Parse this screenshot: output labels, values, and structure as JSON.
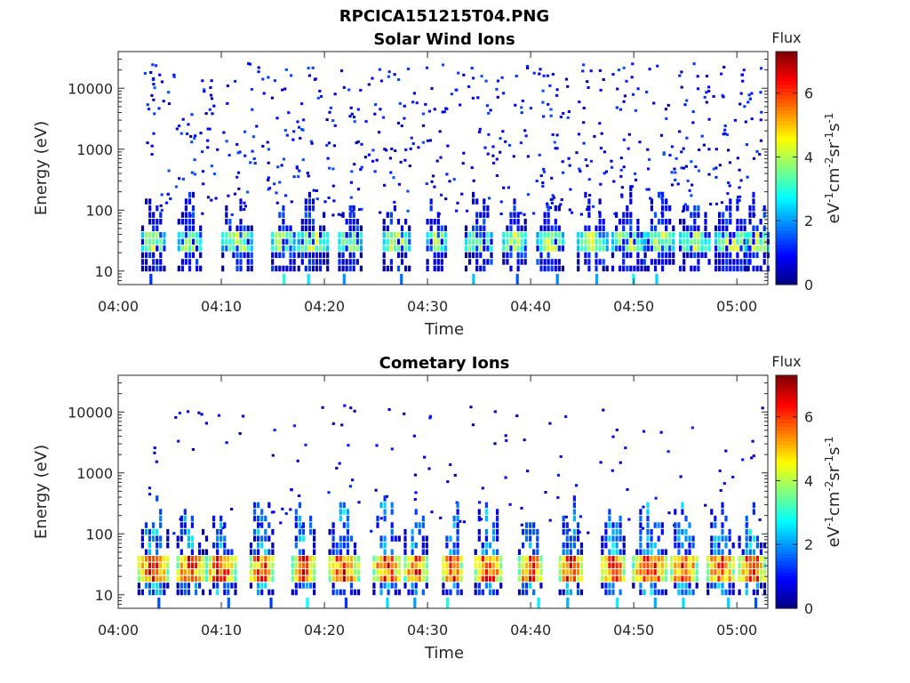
{
  "figure_title": "RPCICA151215T04.PNG",
  "colorbar": {
    "label": "Flux",
    "unit_html": "eV-1cm-2sr-1s-1",
    "ticks": [
      "0",
      "2",
      "4",
      "6"
    ],
    "range": [
      0,
      7.3
    ]
  },
  "chart_data": [
    {
      "type": "heatmap",
      "title": "Solar Wind Ions",
      "xlabel": "Time",
      "ylabel": "Energy (eV)",
      "x_ticks": [
        "04:00",
        "04:10",
        "04:20",
        "04:30",
        "04:40",
        "04:50",
        "05:00"
      ],
      "x_range": [
        "04:00",
        "05:03"
      ],
      "y_scale": "log",
      "y_ticks": [
        "10",
        "100",
        "1000",
        "10000"
      ],
      "y_range": [
        6,
        40000
      ],
      "burst_times_min": [
        3.5,
        7,
        11.5,
        16,
        19,
        22.5,
        27,
        31,
        35,
        38.5,
        42,
        46,
        49.5,
        52.5,
        56,
        59.5,
        62
      ],
      "burst_peak_flux": 4.5,
      "burst_energy_ev": [
        20,
        45
      ],
      "background": "sparse low-flux pixels (flux ~0.5–1.5) up to ~10000 eV"
    },
    {
      "type": "heatmap",
      "title": "Cometary Ions",
      "xlabel": "Time",
      "ylabel": "Energy (eV)",
      "x_ticks": [
        "04:00",
        "04:10",
        "04:20",
        "04:30",
        "04:40",
        "04:50",
        "05:00"
      ],
      "x_range": [
        "04:00",
        "05:03"
      ],
      "y_scale": "log",
      "y_ticks": [
        "10",
        "100",
        "1000",
        "10000"
      ],
      "y_range": [
        6,
        40000
      ],
      "burst_times_min": [
        3.5,
        7,
        10,
        14,
        18,
        22,
        26,
        29,
        32.5,
        36,
        40,
        44,
        48,
        51.5,
        55,
        58.5,
        61.5
      ],
      "burst_peak_flux": 6.8,
      "burst_energy_ev": [
        15,
        45
      ],
      "background": "sparse low-flux pixels (flux ~0.5–1) up to ~10000 eV"
    }
  ]
}
